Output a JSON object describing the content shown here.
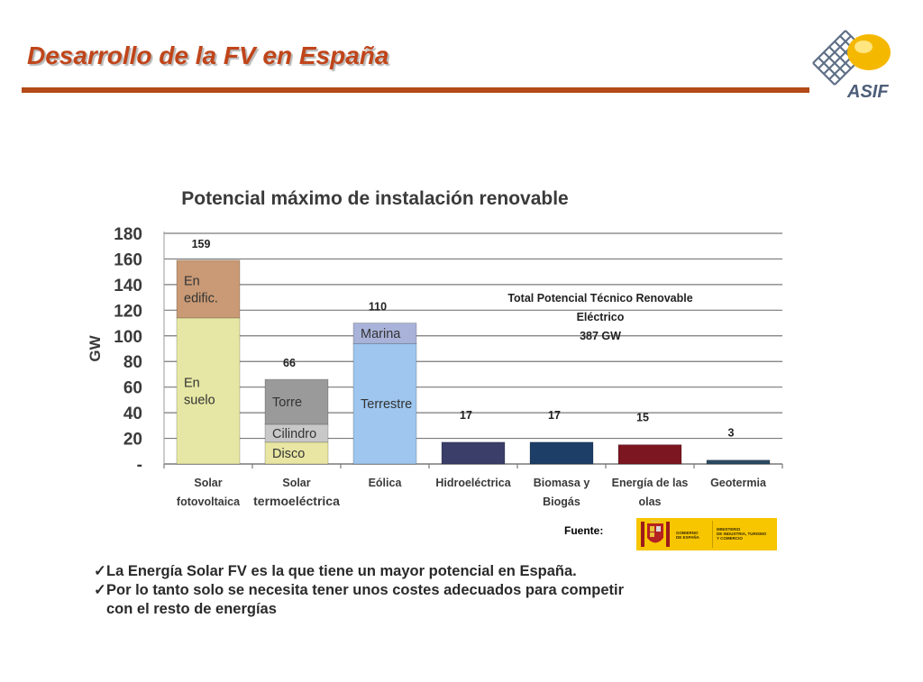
{
  "slide": {
    "title": "Desarrollo de la FV en España",
    "logo_text": "ASIF"
  },
  "colors": {
    "title": "#c0451a",
    "rule": "#b34a17",
    "pv_rooftop": "#c99a75",
    "pv_ground": "#e6e7a4",
    "thermal_tower": "#9a9a9a",
    "thermal_cylinder": "#c8c8c8",
    "thermal_disc": "#e8e6a2",
    "wind_offshore": "#a9b3d9",
    "wind_onshore": "#9ec6ee",
    "hydro": "#3a3e69",
    "biomass": "#1d3e66",
    "wave": "#7c1620",
    "geothermal": "#2b4b63"
  },
  "chart_data": {
    "type": "bar",
    "title": "Potencial máximo de instalación renovable",
    "ylabel": "GW",
    "ylim": [
      0,
      180
    ],
    "yticks": [
      "180",
      "160",
      "140",
      "120",
      "100",
      "80",
      "60",
      "40",
      "20",
      "-"
    ],
    "grid": true,
    "categories": [
      [
        "Solar",
        "fotovoltaica"
      ],
      [
        "Solar",
        "termoeléctrica"
      ],
      [
        "Eólica"
      ],
      [
        "Hidroeléctrica"
      ],
      [
        "Biomasa y",
        "Biogás"
      ],
      [
        "Energía de las",
        "olas"
      ],
      [
        "Geotermia"
      ]
    ],
    "bars": [
      {
        "total": 159,
        "label": "159",
        "segments": [
          {
            "name": [
              "En",
              "suelo"
            ],
            "value": 114,
            "color": "#e6e7a4"
          },
          {
            "name": [
              "En",
              "edific."
            ],
            "value": 45,
            "color": "#c99a75"
          }
        ]
      },
      {
        "total": 66,
        "label": "66",
        "segments": [
          {
            "name": [
              "Disco"
            ],
            "value": 17,
            "color": "#e8e6a2"
          },
          {
            "name": [
              "Cilindro"
            ],
            "value": 14,
            "color": "#c8c8c8"
          },
          {
            "name": [
              "Torre"
            ],
            "value": 35,
            "color": "#9a9a9a"
          }
        ]
      },
      {
        "total": 110,
        "label": "110",
        "segments": [
          {
            "name": [
              "Terrestre"
            ],
            "value": 94,
            "color": "#9ec6ee"
          },
          {
            "name": [
              "Marina"
            ],
            "value": 16,
            "color": "#a9b3d9"
          }
        ]
      },
      {
        "total": 17,
        "label": "17",
        "segments": [
          {
            "name": [],
            "value": 17,
            "color": "#3a3e69"
          }
        ]
      },
      {
        "total": 17,
        "label": "17",
        "segments": [
          {
            "name": [],
            "value": 17,
            "color": "#1d3e66"
          }
        ]
      },
      {
        "total": 15,
        "label": "15",
        "segments": [
          {
            "name": [],
            "value": 15,
            "color": "#7c1620"
          }
        ]
      },
      {
        "total": 3,
        "label": "3",
        "segments": [
          {
            "name": [],
            "value": 3,
            "color": "#2b4b63"
          }
        ]
      }
    ],
    "annotation": [
      "Total Potencial Técnico Renovable",
      "Eléctrico",
      "387 GW"
    ]
  },
  "source": {
    "label": "Fuente:",
    "logo_left": [
      "GOBIERNO",
      "DE ESPAÑA"
    ],
    "logo_right": [
      "MINISTERIO",
      "DE INDUSTRIA, TURISMO",
      "Y COMERCIO"
    ]
  },
  "bullets": {
    "check": "✓",
    "item1": "La Energía Solar FV es la que tiene un mayor potencial en España.",
    "item2_line1": "Por lo tanto solo se necesita tener unos costes adecuados para competir",
    "item2_line2": "con el resto de energías"
  }
}
